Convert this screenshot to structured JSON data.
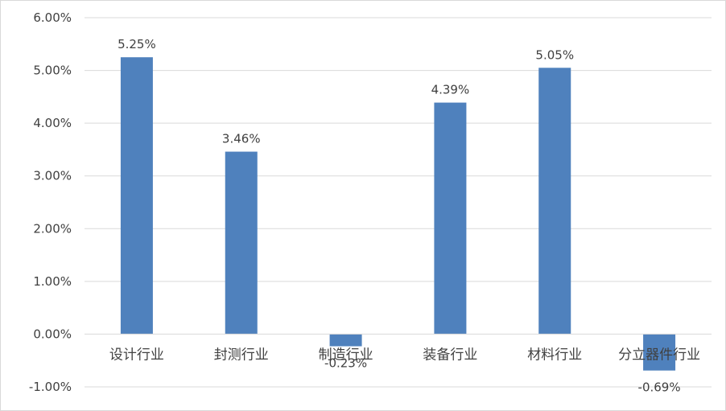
{
  "chart_data": {
    "type": "bar",
    "categories": [
      "设计行业",
      "封测行业",
      "制造行业",
      "装备行业",
      "材料行业",
      "分立器件行业"
    ],
    "values": [
      5.25,
      3.46,
      -0.23,
      4.39,
      5.05,
      -0.69
    ],
    "data_labels": [
      "5.25%",
      "3.46%",
      "-0.23%",
      "4.39%",
      "5.05%",
      "-0.69%"
    ],
    "ylim": [
      -1.0,
      6.0
    ],
    "yticks": [
      -1.0,
      0.0,
      1.0,
      2.0,
      3.0,
      4.0,
      5.0,
      6.0
    ],
    "ytick_labels": [
      "-1.00%",
      "0.00%",
      "1.00%",
      "2.00%",
      "3.00%",
      "4.00%",
      "5.00%",
      "6.00%"
    ],
    "title": "",
    "xlabel": "",
    "ylabel": "",
    "grid": true,
    "legend": "none",
    "bar_color": "#4F81BD",
    "grid_color": "#D9D9D9",
    "text_color": "#404040"
  }
}
